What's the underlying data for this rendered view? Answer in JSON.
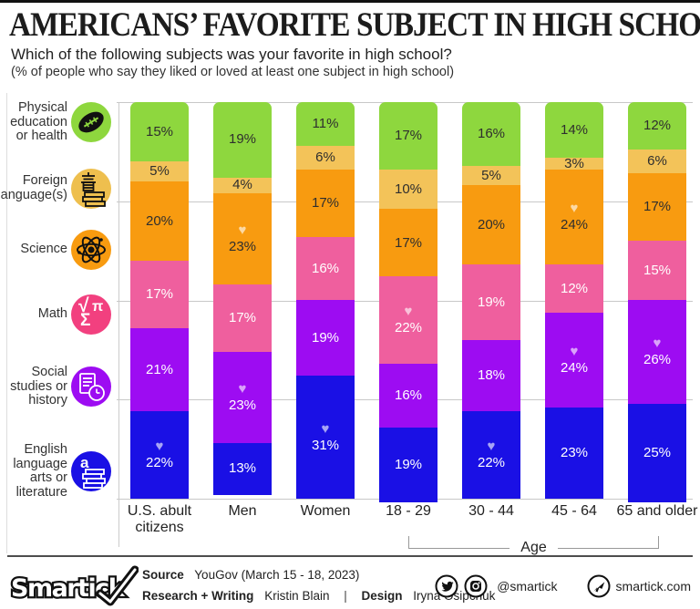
{
  "header": {
    "title": "AMERICANS’ FAVORITE SUBJECT IN HIGH SCHOOL",
    "subtitle": "Which of the following subjects was your favorite in high school?",
    "note": "(% of people who say they liked or loved at least one subject in high school)"
  },
  "chart_data": {
    "type": "bar",
    "stacked": true,
    "unit": "%",
    "ylim": [
      0,
      100
    ],
    "gridlines": [
      0,
      25,
      50,
      75,
      100
    ],
    "heart_symbol": "♥",
    "heart_meaning": "highest share in column",
    "categories": [
      "U.S. abult citizens",
      "Men",
      "Women",
      "18 - 29",
      "30 - 44",
      "45 - 64",
      "65 and older"
    ],
    "age_axis": {
      "label": "Age",
      "covers": [
        "18 - 29",
        "30 - 44",
        "45 - 64",
        "65 and older"
      ]
    },
    "series": [
      {
        "key": "physical-education",
        "name": "Physical education or health",
        "icon": "football-icon",
        "color": "#8ed73e",
        "icon_bg": "#8ed73e",
        "text_color": "#2e2e2e",
        "values": [
          15,
          19,
          11,
          17,
          16,
          14,
          12
        ]
      },
      {
        "key": "foreign-language",
        "name": "Foreign language(s)",
        "icon": "language-books-icon",
        "color": "#f3c359",
        "icon_bg": "#eebf4e",
        "text_color": "#2e2e2e",
        "values": [
          5,
          4,
          6,
          10,
          5,
          3,
          6
        ]
      },
      {
        "key": "science",
        "name": "Science",
        "icon": "atom-icon",
        "color": "#f89b10",
        "icon_bg": "#f89b10",
        "text_color": "#2e2e2e",
        "values": [
          20,
          23,
          17,
          17,
          20,
          24,
          17
        ]
      },
      {
        "key": "math",
        "name": "Math",
        "icon": "math-symbols-icon",
        "color": "#ef5f9e",
        "icon_bg": "#f2407f",
        "text_color": "#ffffff",
        "values": [
          17,
          17,
          16,
          22,
          19,
          12,
          15
        ]
      },
      {
        "key": "social-studies",
        "name": "Social studies or history",
        "icon": "history-clock-icon",
        "color": "#9d0cf2",
        "icon_bg": "#9d0cf2",
        "text_color": "#ffffff",
        "values": [
          21,
          23,
          19,
          16,
          18,
          24,
          26
        ]
      },
      {
        "key": "english",
        "name": "English language arts or literature",
        "icon": "english-books-icon",
        "color": "#1a10e5",
        "icon_bg": "#1a10e5",
        "text_color": "#ffffff",
        "values": [
          22,
          13,
          31,
          19,
          22,
          23,
          25
        ]
      }
    ],
    "hearts": [
      [
        5
      ],
      [
        2,
        4
      ],
      [
        5
      ],
      [
        3
      ],
      [
        5
      ],
      [
        2,
        4
      ],
      [
        4
      ]
    ]
  },
  "footer": {
    "logo_text": "Smartick",
    "source_label": "Source",
    "source_value": "YouGov (March 15 - 18, 2023)",
    "research_label": "Research + Writing",
    "research_value": "Kristin Blain",
    "divider": "|",
    "design_label": "Design",
    "design_value": "Iryna Osipchuk",
    "social_handle": "@smartick",
    "website": "smartick.com"
  }
}
